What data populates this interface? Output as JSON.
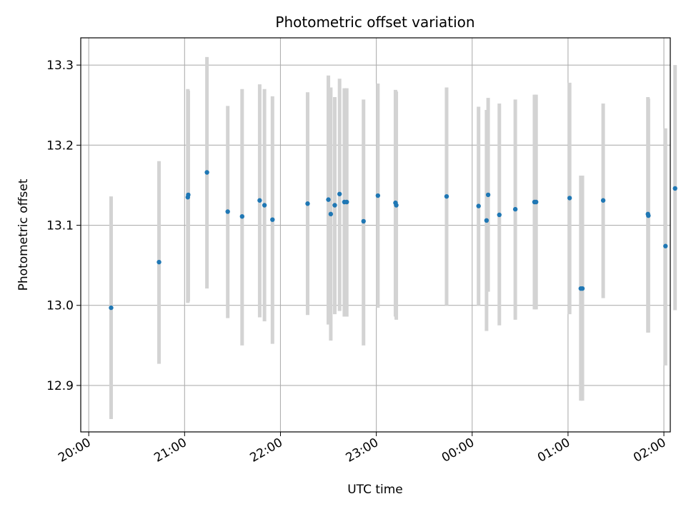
{
  "chart_data": {
    "type": "scatter",
    "title": "Photometric offset variation",
    "xlabel": "UTC time",
    "ylabel": "Photometric offset",
    "x_unit": "minutes after 20:00 UTC",
    "xlim": [
      -5,
      364
    ],
    "ylim": [
      12.842,
      13.334
    ],
    "x_tick_labels": [
      "20:00",
      "21:00",
      "22:00",
      "23:00",
      "00:00",
      "01:00",
      "02:00"
    ],
    "y_ticks": [
      12.9,
      13.0,
      13.1,
      13.2,
      13.3
    ],
    "y_tick_labels": [
      "12.9",
      "13.0",
      "13.1",
      "13.2",
      "13.3"
    ],
    "grid": true,
    "point_color": "#1f77b4",
    "errorbar_color": "#d3d3d3",
    "points": [
      {
        "time": "20:14",
        "x": 14,
        "y": 12.997,
        "lo": 12.858,
        "hi": 13.136
      },
      {
        "time": "20:44",
        "x": 44,
        "y": 13.054,
        "lo": 12.927,
        "hi": 13.18
      },
      {
        "time": "21:02",
        "x": 62,
        "y": 13.135,
        "lo": 13.003,
        "hi": 13.27
      },
      {
        "time": "21:02",
        "x": 62.3,
        "y": 13.138,
        "lo": 13.005,
        "hi": 13.268
      },
      {
        "time": "21:14",
        "x": 74,
        "y": 13.166,
        "lo": 13.021,
        "hi": 13.31
      },
      {
        "time": "21:27",
        "x": 87,
        "y": 13.117,
        "lo": 12.984,
        "hi": 13.249
      },
      {
        "time": "21:36",
        "x": 96,
        "y": 13.111,
        "lo": 12.95,
        "hi": 13.27
      },
      {
        "time": "21:47",
        "x": 107,
        "y": 13.131,
        "lo": 12.985,
        "hi": 13.276
      },
      {
        "time": "21:50",
        "x": 110,
        "y": 13.125,
        "lo": 12.98,
        "hi": 13.27
      },
      {
        "time": "21:55",
        "x": 115,
        "y": 13.107,
        "lo": 12.952,
        "hi": 13.261
      },
      {
        "time": "22:17",
        "x": 137,
        "y": 13.127,
        "lo": 12.988,
        "hi": 13.266
      },
      {
        "time": "22:30",
        "x": 150,
        "y": 13.132,
        "lo": 12.976,
        "hi": 13.287
      },
      {
        "time": "22:31",
        "x": 151.5,
        "y": 13.114,
        "lo": 12.956,
        "hi": 13.272
      },
      {
        "time": "22:34",
        "x": 154,
        "y": 13.125,
        "lo": 12.989,
        "hi": 13.26
      },
      {
        "time": "22:37",
        "x": 157,
        "y": 13.139,
        "lo": 12.993,
        "hi": 13.283
      },
      {
        "time": "22:40",
        "x": 160,
        "y": 13.129,
        "lo": 12.986,
        "hi": 13.271
      },
      {
        "time": "22:41",
        "x": 161.5,
        "y": 13.129,
        "lo": 12.986,
        "hi": 13.271
      },
      {
        "time": "22:52",
        "x": 172,
        "y": 13.105,
        "lo": 12.95,
        "hi": 13.257
      },
      {
        "time": "23:01",
        "x": 181,
        "y": 13.137,
        "lo": 12.997,
        "hi": 13.277
      },
      {
        "time": "23:12",
        "x": 192,
        "y": 13.128,
        "lo": 12.986,
        "hi": 13.269
      },
      {
        "time": "23:12",
        "x": 192.5,
        "y": 13.125,
        "lo": 12.982,
        "hi": 13.267
      },
      {
        "time": "23:44",
        "x": 224,
        "y": 13.136,
        "lo": 13.0,
        "hi": 13.272
      },
      {
        "time": "00:04",
        "x": 244,
        "y": 13.124,
        "lo": 13.0,
        "hi": 13.248
      },
      {
        "time": "00:09",
        "x": 249,
        "y": 13.106,
        "lo": 12.968,
        "hi": 13.244
      },
      {
        "time": "00:10",
        "x": 250,
        "y": 13.138,
        "lo": 13.017,
        "hi": 13.259
      },
      {
        "time": "00:17",
        "x": 257,
        "y": 13.113,
        "lo": 12.975,
        "hi": 13.252
      },
      {
        "time": "00:27",
        "x": 267,
        "y": 13.12,
        "lo": 12.982,
        "hi": 13.257
      },
      {
        "time": "00:39",
        "x": 279,
        "y": 13.129,
        "lo": 12.995,
        "hi": 13.263
      },
      {
        "time": "00:40",
        "x": 280,
        "y": 13.129,
        "lo": 12.995,
        "hi": 13.263
      },
      {
        "time": "01:01",
        "x": 301,
        "y": 13.134,
        "lo": 12.989,
        "hi": 13.278
      },
      {
        "time": "01:08",
        "x": 308,
        "y": 13.021,
        "lo": 12.881,
        "hi": 13.162
      },
      {
        "time": "01:09",
        "x": 309,
        "y": 13.021,
        "lo": 12.881,
        "hi": 13.162
      },
      {
        "time": "01:22",
        "x": 322,
        "y": 13.131,
        "lo": 13.009,
        "hi": 13.252
      },
      {
        "time": "01:50",
        "x": 350,
        "y": 13.114,
        "lo": 12.966,
        "hi": 13.26
      },
      {
        "time": "01:50",
        "x": 350.3,
        "y": 13.112,
        "lo": 12.966,
        "hi": 13.258
      },
      {
        "time": "02:01",
        "x": 361,
        "y": 13.074,
        "lo": 12.925,
        "hi": 13.221
      },
      {
        "time": "02:07",
        "x": 367,
        "y": 13.146,
        "lo": 12.994,
        "hi": 13.3
      }
    ]
  }
}
